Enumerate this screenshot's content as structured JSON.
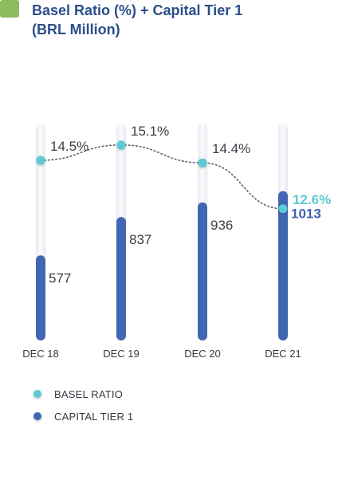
{
  "title": "Basel Ratio (%) + Capital Tier 1",
  "subtitle": "(BRL Million)",
  "colors": {
    "title": "#2a4f8a",
    "accent_square": "#8dbb5e",
    "bar": "#4267b2",
    "bar_track": "#eef0f5",
    "line_dot": "#5ccbd4",
    "label_text": "#3a3f47",
    "last_ratio_label": "#5ccbd4",
    "last_value_label": "#3f63b0"
  },
  "chart_data": {
    "type": "bar",
    "categories": [
      "DEC 18",
      "DEC 19",
      "DEC 20",
      "DEC 21"
    ],
    "series": [
      {
        "name": "CAPITAL TIER 1",
        "type": "bar",
        "values": [
          577,
          837,
          936,
          1013
        ],
        "labels": [
          "577",
          "837",
          "936",
          "1013"
        ]
      },
      {
        "name": "BASEL RATIO",
        "type": "line",
        "values": [
          14.5,
          15.1,
          14.4,
          12.6
        ],
        "labels": [
          "14.5%",
          "15.1%",
          "14.4%",
          "12.6%"
        ]
      }
    ],
    "legend": [
      {
        "label": "BASEL RATIO",
        "color": "#5ccbd4"
      },
      {
        "label": "CAPITAL TIER 1",
        "color": "#4267b2"
      }
    ],
    "legend_position": "bottom-left",
    "grid": false
  }
}
